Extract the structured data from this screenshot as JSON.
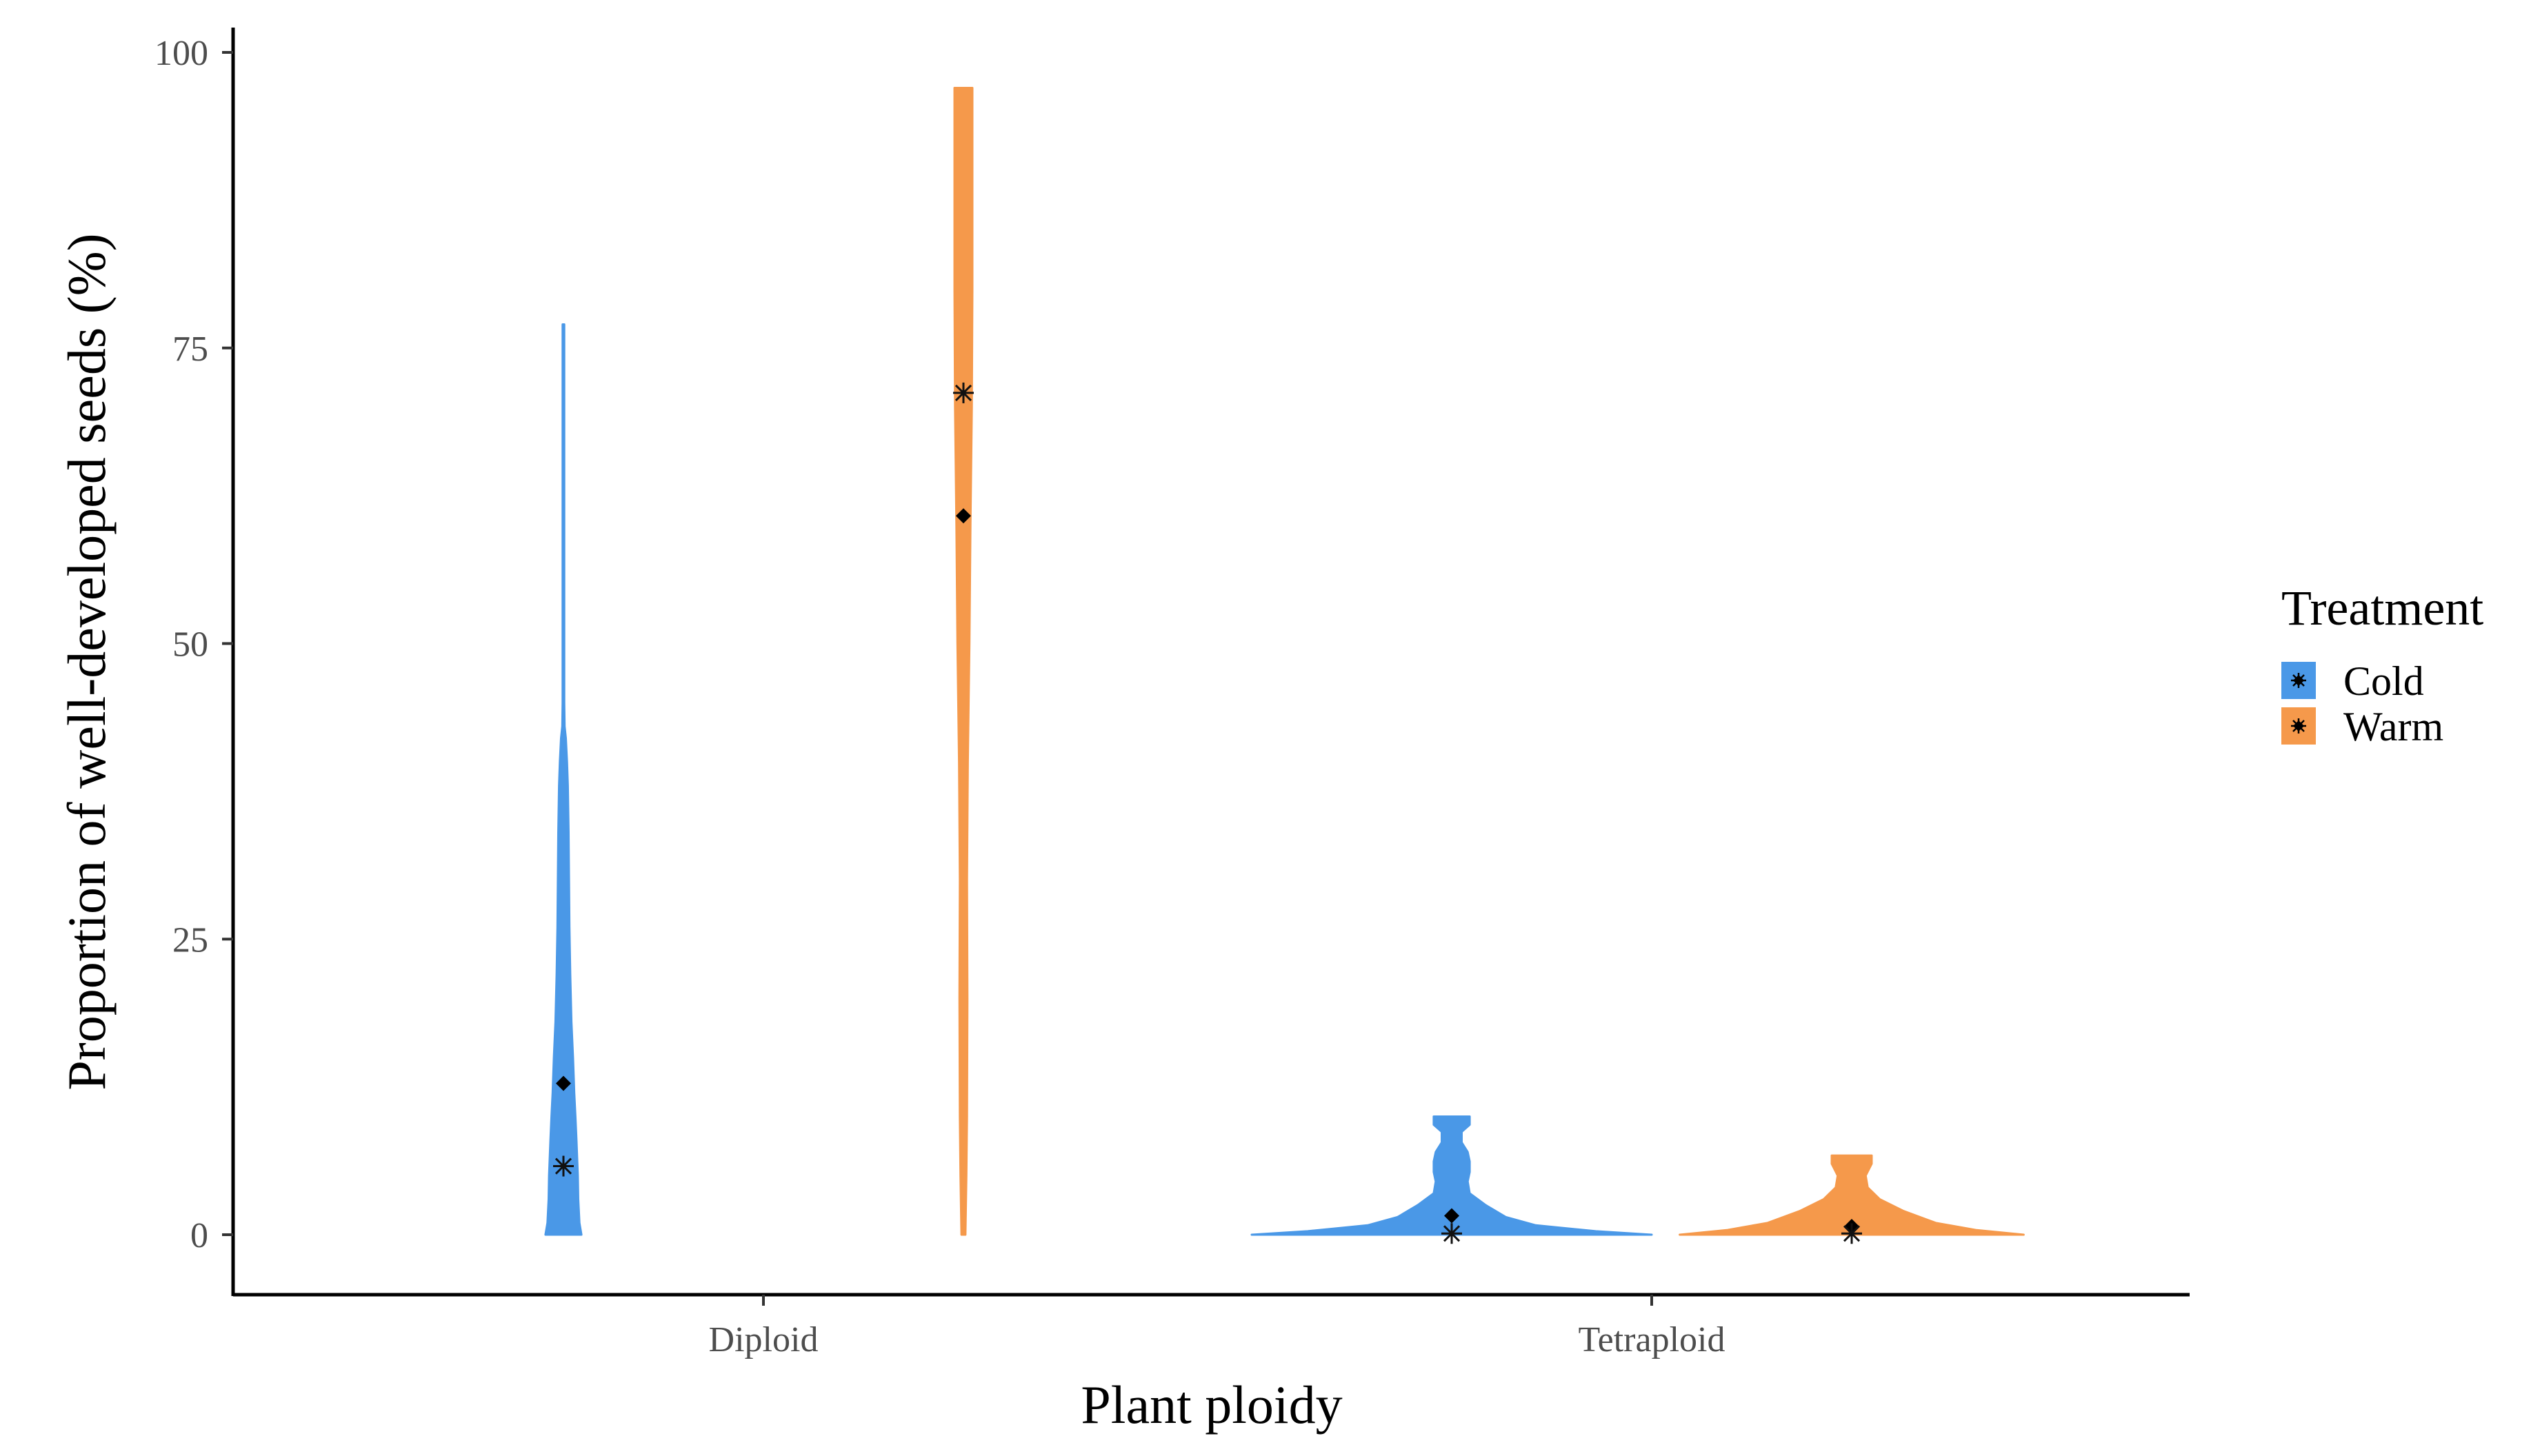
{
  "chart_data": {
    "type": "violin",
    "xlabel": "Plant ploidy",
    "ylabel": "Proportion of well-developed seeds (%)",
    "ylim": [
      -2,
      104
    ],
    "yticks": [
      0,
      25,
      50,
      75,
      100
    ],
    "categories": [
      "Diploid",
      "Tetraploid"
    ],
    "legend": {
      "title": "Treatment",
      "position": "right",
      "items": [
        {
          "label": "Cold",
          "color": "#4A98E7"
        },
        {
          "label": "Warm",
          "color": "#F5994B"
        }
      ]
    },
    "series": [
      {
        "name": "Cold",
        "color": "#4A98E7",
        "violins": [
          {
            "category": "Diploid",
            "min": 0,
            "max": 77,
            "mean": 12.8,
            "median": 5.8,
            "profile": [
              [
                0,
                0.09
              ],
              [
                1,
                0.08
              ],
              [
                3,
                0.074
              ],
              [
                5,
                0.072
              ],
              [
                8,
                0.065
              ],
              [
                10,
                0.06
              ],
              [
                12,
                0.054
              ],
              [
                15,
                0.048
              ],
              [
                18,
                0.04
              ],
              [
                22,
                0.034
              ],
              [
                26,
                0.03
              ],
              [
                30,
                0.028
              ],
              [
                34,
                0.026
              ],
              [
                38,
                0.022
              ],
              [
                40,
                0.018
              ],
              [
                42,
                0.012
              ],
              [
                43,
                0.006
              ],
              [
                45,
                0.004
              ],
              [
                60,
                0.004
              ],
              [
                77,
                0.004
              ]
            ]
          },
          {
            "category": "Tetraploid",
            "min": 0,
            "max": 10,
            "mean": 1.6,
            "median": 0.1,
            "profile": [
              [
                0,
                1.0
              ],
              [
                0.3,
                0.72
              ],
              [
                0.8,
                0.42
              ],
              [
                1.5,
                0.27
              ],
              [
                2.5,
                0.17
              ],
              [
                3.5,
                0.09
              ],
              [
                4.5,
                0.08
              ],
              [
                5.3,
                0.09
              ],
              [
                6.2,
                0.09
              ],
              [
                7,
                0.08
              ],
              [
                7.8,
                0.05
              ],
              [
                8.7,
                0.05
              ],
              [
                9.3,
                0.09
              ],
              [
                10,
                0.09
              ]
            ]
          }
        ]
      },
      {
        "name": "Warm",
        "color": "#F5994B",
        "violins": [
          {
            "category": "Diploid",
            "min": 0,
            "max": 97,
            "mean": 60.8,
            "median": 71.2,
            "profile": [
              [
                0,
                0.01
              ],
              [
                5,
                0.015
              ],
              [
                10,
                0.018
              ],
              [
                20,
                0.02
              ],
              [
                30,
                0.018
              ],
              [
                40,
                0.022
              ],
              [
                50,
                0.03
              ],
              [
                60,
                0.035
              ],
              [
                70,
                0.042
              ],
              [
                80,
                0.045
              ],
              [
                90,
                0.045
              ],
              [
                97,
                0.045
              ]
            ]
          },
          {
            "category": "Tetraploid",
            "min": 0,
            "max": 6.7,
            "mean": 0.7,
            "median": 0.1,
            "profile": [
              [
                0,
                0.86
              ],
              [
                0.4,
                0.62
              ],
              [
                1,
                0.42
              ],
              [
                2,
                0.26
              ],
              [
                3,
                0.14
              ],
              [
                4,
                0.08
              ],
              [
                5,
                0.07
              ],
              [
                6,
                0.1
              ],
              [
                6.7,
                0.1
              ]
            ]
          }
        ]
      }
    ]
  }
}
